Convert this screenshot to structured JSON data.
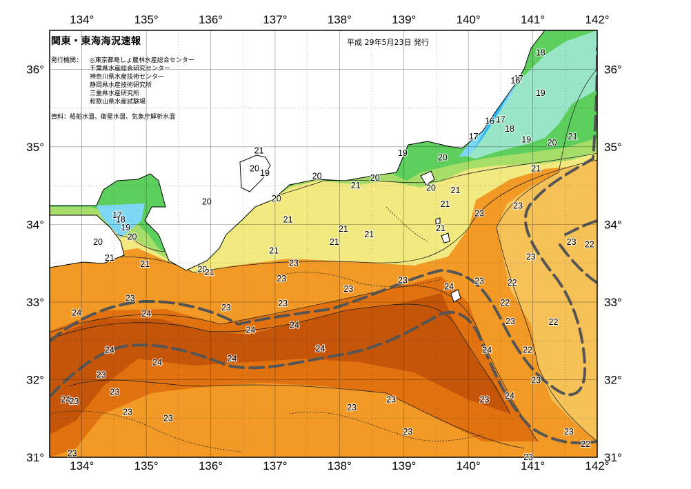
{
  "header": {
    "title": "関東・東海海況速報",
    "date": "平成 29年5月23日 発行",
    "issuer_label": "発行機関：",
    "issuers": [
      "◎東京都島しょ農林水産総合センター",
      "千葉県水産総合研究センター",
      "神奈川県水産技術センター",
      "静岡県水産技術研究所",
      "三重県水産研究所",
      "和歌山県水産試験場"
    ],
    "source": "資料：船舶水温、衛星水温、気象庁解析水温"
  },
  "map": {
    "lon_range": [
      133.5,
      142
    ],
    "lat_range": [
      31,
      36.5
    ],
    "lon_ticks": [
      "134°",
      "135°",
      "136°",
      "137°",
      "138°",
      "139°",
      "140°",
      "141°",
      "142°"
    ],
    "lat_ticks": [
      "31°",
      "32°",
      "33°",
      "34°",
      "35°",
      "36°"
    ],
    "unit": "℃",
    "colors": {
      "land": "#ffffff",
      "c16": "#29b8f0",
      "c17": "#7ed8f5",
      "c18": "#99e6c8",
      "c19": "#5ccf5c",
      "c20": "#a6de69",
      "c21": "#f2ea80",
      "c22": "#f6c257",
      "c23": "#f39a26",
      "c24": "#e1720f",
      "c25": "#c55508",
      "kuroshio": "#555555"
    },
    "isotherm_labels": [
      {
        "t": "18",
        "lon": 141.12,
        "lat": 36.21
      },
      {
        "t": "17",
        "lon": 140.78,
        "lat": 35.88
      },
      {
        "t": "16",
        "lon": 140.73,
        "lat": 35.85
      },
      {
        "t": "19",
        "lon": 141.12,
        "lat": 35.69
      },
      {
        "t": "16",
        "lon": 140.33,
        "lat": 35.33
      },
      {
        "t": "17",
        "lon": 140.5,
        "lat": 35.35
      },
      {
        "t": "18",
        "lon": 140.64,
        "lat": 35.23
      },
      {
        "t": "19",
        "lon": 140.9,
        "lat": 35.09
      },
      {
        "t": "17",
        "lon": 140.08,
        "lat": 35.13
      },
      {
        "t": "20",
        "lon": 141.3,
        "lat": 35.05
      },
      {
        "t": "21",
        "lon": 141.62,
        "lat": 35.13
      },
      {
        "t": "19",
        "lon": 138.98,
        "lat": 34.92
      },
      {
        "t": "20",
        "lon": 139.6,
        "lat": 34.86
      },
      {
        "t": "21",
        "lon": 136.75,
        "lat": 34.95
      },
      {
        "t": "20",
        "lon": 136.68,
        "lat": 34.72
      },
      {
        "t": "19",
        "lon": 136.84,
        "lat": 34.66
      },
      {
        "t": "20",
        "lon": 137.65,
        "lat": 34.62
      },
      {
        "t": "20",
        "lon": 138.55,
        "lat": 34.6
      },
      {
        "t": "21",
        "lon": 138.25,
        "lat": 34.5
      },
      {
        "t": "20",
        "lon": 139.42,
        "lat": 34.47
      },
      {
        "t": "21",
        "lon": 139.8,
        "lat": 34.44
      },
      {
        "t": "21",
        "lon": 141.05,
        "lat": 34.72
      },
      {
        "t": "20",
        "lon": 137.02,
        "lat": 34.33
      },
      {
        "t": "20",
        "lon": 135.94,
        "lat": 34.29
      },
      {
        "t": "21",
        "lon": 139.64,
        "lat": 34.26
      },
      {
        "t": "21",
        "lon": 137.2,
        "lat": 34.06
      },
      {
        "t": "21",
        "lon": 138.06,
        "lat": 33.94
      },
      {
        "t": "21",
        "lon": 138.46,
        "lat": 33.87
      },
      {
        "t": "21",
        "lon": 137.92,
        "lat": 33.77
      },
      {
        "t": "21",
        "lon": 139.57,
        "lat": 33.95
      },
      {
        "t": "23",
        "lon": 140.17,
        "lat": 34.14
      },
      {
        "t": "23",
        "lon": 140.77,
        "lat": 34.24
      },
      {
        "t": "23",
        "lon": 141.6,
        "lat": 33.77
      },
      {
        "t": "22",
        "lon": 141.88,
        "lat": 33.74
      },
      {
        "t": "17",
        "lon": 134.55,
        "lat": 34.12
      },
      {
        "t": "18",
        "lon": 134.6,
        "lat": 34.06
      },
      {
        "t": "19",
        "lon": 134.68,
        "lat": 33.96
      },
      {
        "t": "20",
        "lon": 134.78,
        "lat": 33.84
      },
      {
        "t": "20",
        "lon": 134.25,
        "lat": 33.77
      },
      {
        "t": "21",
        "lon": 134.43,
        "lat": 33.57
      },
      {
        "t": "21",
        "lon": 136.98,
        "lat": 33.66
      },
      {
        "t": "23",
        "lon": 137.29,
        "lat": 33.5
      },
      {
        "t": "23",
        "lon": 140.97,
        "lat": 33.58
      },
      {
        "t": "21",
        "lon": 134.98,
        "lat": 33.49
      },
      {
        "t": "20",
        "lon": 135.87,
        "lat": 33.42
      },
      {
        "t": "21",
        "lon": 135.98,
        "lat": 33.38
      },
      {
        "t": "23",
        "lon": 137.1,
        "lat": 33.3
      },
      {
        "t": "23",
        "lon": 138.14,
        "lat": 33.17
      },
      {
        "t": "23",
        "lon": 138.98,
        "lat": 33.28
      },
      {
        "t": "24",
        "lon": 139.7,
        "lat": 33.2
      },
      {
        "t": "23",
        "lon": 140.17,
        "lat": 33.27
      },
      {
        "t": "22",
        "lon": 140.68,
        "lat": 33.25
      },
      {
        "t": "23",
        "lon": 134.75,
        "lat": 33.05
      },
      {
        "t": "23",
        "lon": 136.24,
        "lat": 32.93
      },
      {
        "t": "23",
        "lon": 137.12,
        "lat": 32.98
      },
      {
        "t": "22",
        "lon": 140.57,
        "lat": 32.99
      },
      {
        "t": "24",
        "lon": 133.92,
        "lat": 32.86
      },
      {
        "t": "24",
        "lon": 135.0,
        "lat": 32.85
      },
      {
        "t": "24",
        "lon": 137.3,
        "lat": 32.7
      },
      {
        "t": "24",
        "lon": 136.62,
        "lat": 32.64
      },
      {
        "t": "22",
        "lon": 141.32,
        "lat": 32.74
      },
      {
        "t": "23",
        "lon": 140.65,
        "lat": 32.75
      },
      {
        "t": "24",
        "lon": 137.7,
        "lat": 32.4
      },
      {
        "t": "24",
        "lon": 134.43,
        "lat": 32.38
      },
      {
        "t": "24",
        "lon": 136.33,
        "lat": 32.27
      },
      {
        "t": "24",
        "lon": 135.17,
        "lat": 32.22
      },
      {
        "t": "24",
        "lon": 140.29,
        "lat": 32.38
      },
      {
        "t": "22",
        "lon": 140.92,
        "lat": 32.38
      },
      {
        "t": "23",
        "lon": 134.3,
        "lat": 32.06
      },
      {
        "t": "23",
        "lon": 134.51,
        "lat": 31.84
      },
      {
        "t": "23",
        "lon": 141.05,
        "lat": 31.99
      },
      {
        "t": "24",
        "lon": 140.64,
        "lat": 31.79
      },
      {
        "t": "24",
        "lon": 133.75,
        "lat": 31.74
      },
      {
        "t": "23",
        "lon": 133.88,
        "lat": 31.72
      },
      {
        "t": "23",
        "lon": 138.8,
        "lat": 31.74
      },
      {
        "t": "23",
        "lon": 140.25,
        "lat": 31.74
      },
      {
        "t": "23",
        "lon": 138.19,
        "lat": 31.64
      },
      {
        "t": "23",
        "lon": 134.71,
        "lat": 31.58
      },
      {
        "t": "23",
        "lon": 135.34,
        "lat": 31.5
      },
      {
        "t": "23",
        "lon": 139.06,
        "lat": 31.33
      },
      {
        "t": "23",
        "lon": 141.56,
        "lat": 31.33
      },
      {
        "t": "22",
        "lon": 141.82,
        "lat": 31.17
      },
      {
        "t": "23",
        "lon": 133.85,
        "lat": 31.05
      },
      {
        "t": "23",
        "lon": 140.93,
        "lat": 31.0
      }
    ]
  }
}
